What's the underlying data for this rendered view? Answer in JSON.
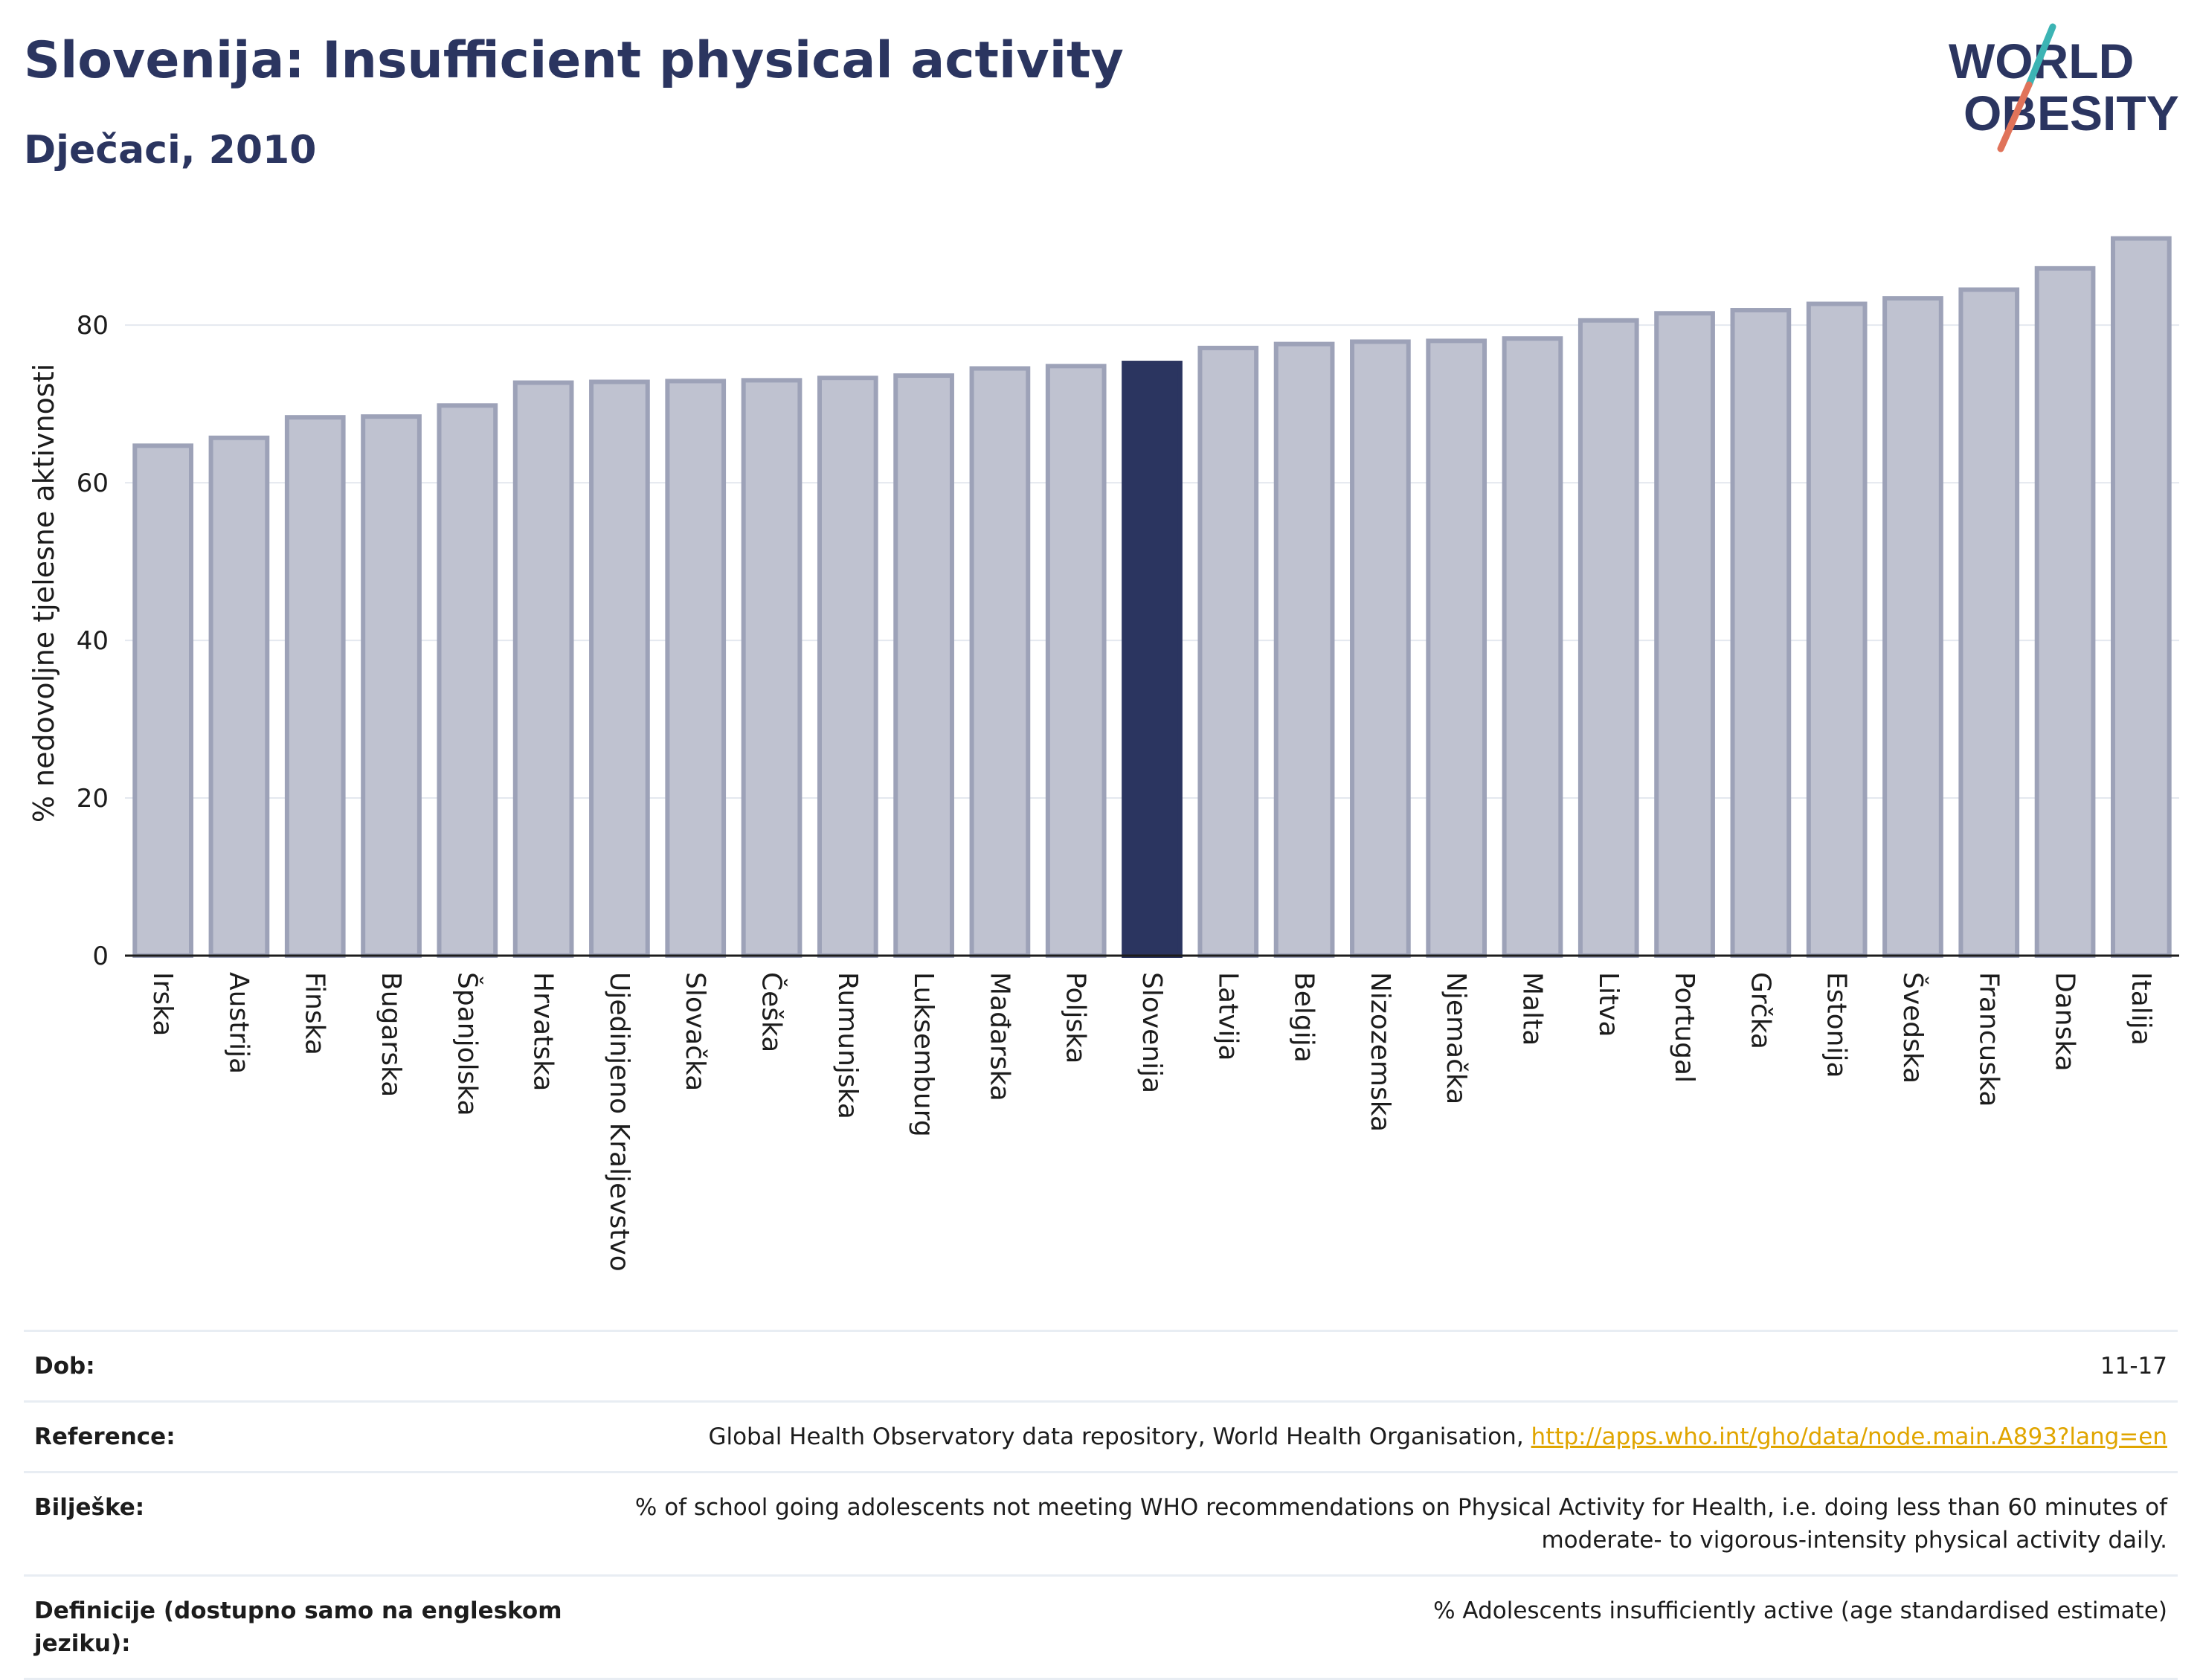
{
  "title": "Slovenija: Insufficient physical activity",
  "subtitle": "Dječaci, 2010",
  "logo": {
    "line1": "WORLD",
    "line2": "OBESITY",
    "accent_colors": [
      "#3cb4b4",
      "#e0735a"
    ]
  },
  "colors": {
    "bar": "#bfc2d0",
    "bar_border": "#9da2b8",
    "highlight": "#2b3560",
    "text": "#2b3560",
    "grid": "#e4e8ef"
  },
  "chart_data": {
    "type": "bar",
    "categories": [
      "Irska",
      "Austrija",
      "Finska",
      "Bugarska",
      "Španjolska",
      "Hrvatska",
      "Ujedinjeno Kraljevstvo",
      "Slovačka",
      "Češka",
      "Rumunjska",
      "Luksemburg",
      "Mađarska",
      "Poljska",
      "Slovenija",
      "Latvija",
      "Belgija",
      "Nizozemska",
      "Njemačka",
      "Malta",
      "Litva",
      "Portugal",
      "Grčka",
      "Estonija",
      "Švedska",
      "Francuska",
      "Danska",
      "Italija"
    ],
    "values": [
      64.7,
      65.7,
      68.3,
      68.4,
      69.8,
      72.7,
      72.8,
      72.9,
      73.0,
      73.3,
      73.6,
      74.5,
      74.8,
      75.2,
      77.1,
      77.6,
      77.9,
      78.0,
      78.3,
      80.6,
      81.5,
      81.9,
      82.7,
      83.4,
      84.5,
      87.2,
      91.0
    ],
    "highlight": "Slovenija",
    "ylabel": "% nedovoljne tjelesne aktivnosti",
    "xlabel": "",
    "yticks": [
      0,
      20,
      40,
      60,
      80
    ],
    "ylim": [
      0,
      92
    ],
    "grid": true
  },
  "meta": [
    {
      "key": "Dob:",
      "value": "11-17"
    },
    {
      "key": "Reference:",
      "value": "Global Health Observatory data repository, World Health Organisation, ",
      "link": "http://apps.who.int/gho/data/node.main.A893?lang=en"
    },
    {
      "key": "Bilješke:",
      "value": "% of school going adolescents not meeting WHO recommendations on Physical Activity for Health, i.e. doing less than 60 minutes of moderate- to vigorous-intensity physical activity daily."
    },
    {
      "key": "Definicije (dostupno samo na engleskom jeziku):",
      "value": "% Adolescents insufficiently active (age standardised estimate)"
    }
  ]
}
